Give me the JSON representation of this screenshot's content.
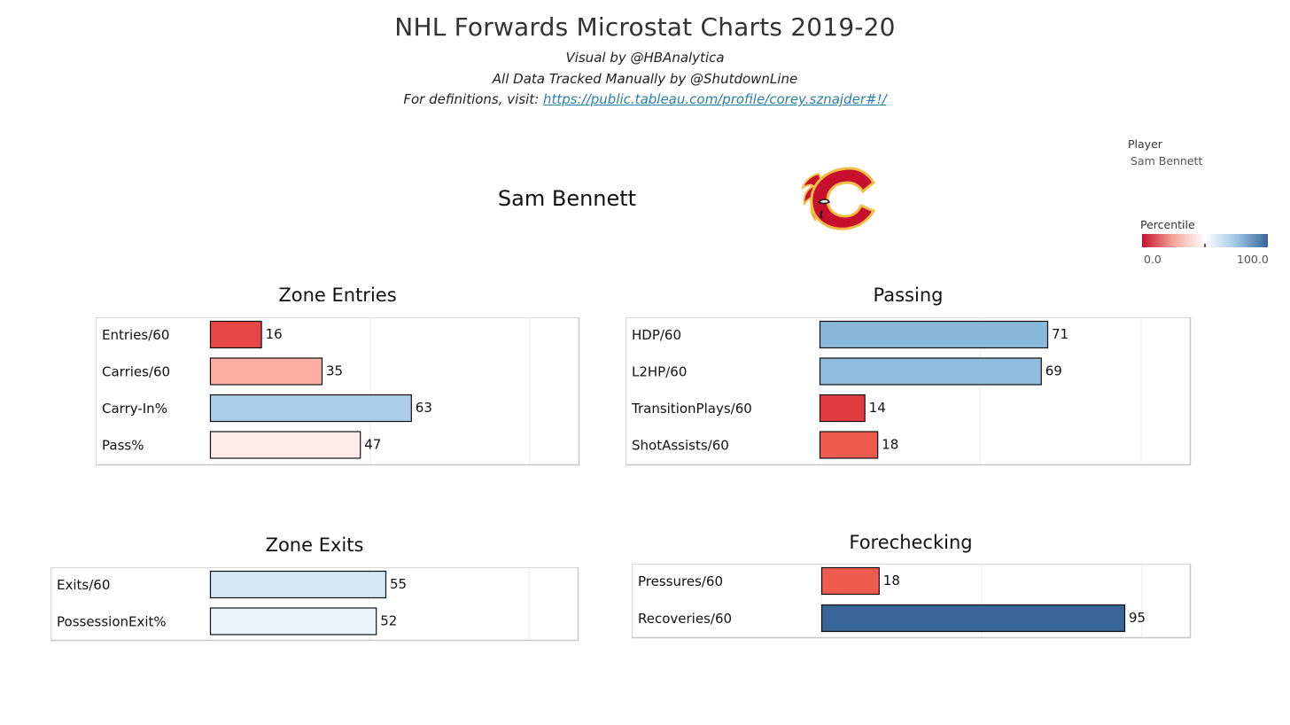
{
  "header": {
    "title": "NHL Forwards Microstat Charts 2019-20",
    "line1": "Visual by @HBAnalytica",
    "line2": "All Data Tracked Manually by @ShutdownLine",
    "line3_prefix": "For definitions, visit: ",
    "line3_link": "https://public.tableau.com/profile/corey.sznajder#!/"
  },
  "player": {
    "name": "Sam Bennett",
    "team_logo_icon": "flaming-c-logo"
  },
  "filter": {
    "label": "Player",
    "value": "Sam Bennett"
  },
  "legend": {
    "title": "Percentile",
    "min_label": "0.0",
    "max_label": "100.0",
    "colors": [
      "#c8102e",
      "#f4a79a",
      "#ffffff",
      "#9ec5e6",
      "#3a6597"
    ]
  },
  "chart_data": [
    {
      "type": "bar",
      "title": "Zone Entries",
      "orientation": "horizontal",
      "xlim": [
        0,
        100
      ],
      "categories": [
        "Entries/60",
        "Carries/60",
        "Carry-In%",
        "Pass%"
      ],
      "values": [
        16,
        35,
        63,
        47
      ],
      "colors": [
        "#e84545",
        "#fbb0a3",
        "#acd0ea",
        "#fdeceb"
      ]
    },
    {
      "type": "bar",
      "title": "Passing",
      "orientation": "horizontal",
      "xlim": [
        0,
        100
      ],
      "categories": [
        "HDP/60",
        "L2HP/60",
        "TransitionPlays/60",
        "ShotAssists/60"
      ],
      "values": [
        71,
        69,
        14,
        18
      ],
      "colors": [
        "#8ab8db",
        "#8fbde0",
        "#e03c3e",
        "#ee5b4e"
      ]
    },
    {
      "type": "bar",
      "title": "Zone Exits",
      "orientation": "horizontal",
      "xlim": [
        0,
        100
      ],
      "categories": [
        "Exits/60",
        "PossessionExit%"
      ],
      "values": [
        55,
        52
      ],
      "colors": [
        "#d3e8f7",
        "#eaf4fc"
      ]
    },
    {
      "type": "bar",
      "title": "Forechecking",
      "orientation": "horizontal",
      "xlim": [
        0,
        100
      ],
      "categories": [
        "Pressures/60",
        "Recoveries/60"
      ],
      "values": [
        18,
        95
      ],
      "colors": [
        "#ee5b4e",
        "#3a6597"
      ]
    }
  ]
}
